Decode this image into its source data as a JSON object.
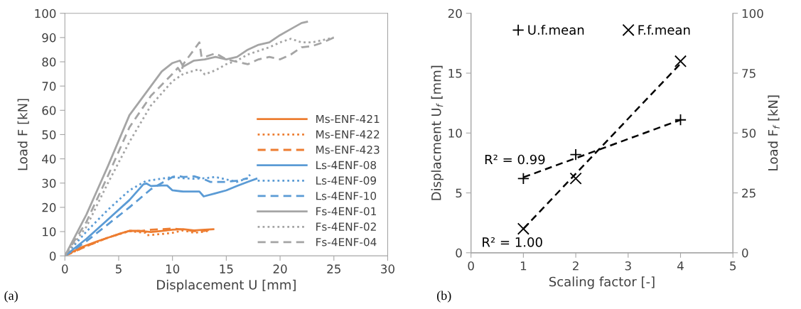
{
  "chart_data": [
    {
      "type": "line",
      "xlabel": "Displacement U [mm]",
      "ylabel": "Load F [kN]",
      "xlim": [
        0,
        30
      ],
      "ylim": [
        0,
        100
      ],
      "xticks": [
        0,
        5,
        10,
        15,
        20,
        25,
        30
      ],
      "yticks": [
        0,
        10,
        20,
        30,
        40,
        50,
        60,
        70,
        80,
        90,
        100
      ],
      "grid": false,
      "legend": "lower right",
      "marker": "none",
      "annotations": [
        "(a)"
      ],
      "series": [
        {
          "name": "Ms-ENF-421",
          "color": "#ed7d31",
          "line_style": "solid",
          "x": [
            0,
            1.5,
            3,
            5,
            6,
            7,
            8,
            9,
            10,
            11,
            12,
            13,
            13.8
          ],
          "values": [
            0,
            3.5,
            6,
            9,
            10.3,
            10.3,
            9.8,
            10.3,
            10.8,
            11,
            10.5,
            10.8,
            11
          ]
        },
        {
          "name": "Ms-ENF-422",
          "color": "#ed7d31",
          "line_style": "dotted",
          "x": [
            0,
            2,
            4,
            6,
            7.5,
            7.6,
            9,
            10,
            11,
            12,
            13,
            13.5
          ],
          "values": [
            0,
            4,
            7.5,
            10.2,
            9.5,
            8.5,
            9,
            9.5,
            10.5,
            9.5,
            10,
            10.5
          ]
        },
        {
          "name": "Ms-ENF-423",
          "color": "#ed7d31",
          "line_style": "dashed",
          "x": [
            0,
            2,
            4,
            6,
            7,
            8,
            9,
            10,
            11,
            12,
            13,
            13.5
          ],
          "values": [
            0,
            4,
            7.5,
            10.3,
            10.2,
            10.8,
            11,
            11.3,
            10.8,
            10.2,
            10.3,
            10.8
          ]
        },
        {
          "name": "Ls-4ENF-08",
          "color": "#5b9bd5",
          "line_style": "solid",
          "x": [
            0,
            2,
            4,
            6,
            7.3,
            7.6,
            8,
            9,
            9.5,
            10,
            11,
            12,
            12.5,
            12.9,
            14,
            15,
            16,
            17,
            17.8
          ],
          "values": [
            0,
            7,
            15,
            23,
            29.5,
            29.8,
            28.8,
            29,
            29,
            27,
            26.5,
            26.5,
            26.5,
            24.5,
            25.8,
            27,
            28.8,
            30.5,
            31.8
          ]
        },
        {
          "name": "Ls-4ENF-09",
          "color": "#5b9bd5",
          "line_style": "dotted",
          "x": [
            0,
            2,
            4,
            6,
            7.5,
            8.5,
            10,
            11,
            12,
            13,
            14,
            15,
            16,
            17,
            17.2
          ],
          "values": [
            0,
            10,
            19,
            27,
            30.8,
            31.5,
            32.5,
            32,
            31.8,
            32,
            32.5,
            31.5,
            30.5,
            32,
            33.5
          ]
        },
        {
          "name": "Ls-4ENF-10",
          "color": "#5b9bd5",
          "line_style": "dashed",
          "x": [
            0,
            2,
            4,
            6,
            8,
            9,
            10,
            10.5,
            11,
            12,
            13,
            13.5,
            15,
            16,
            17
          ],
          "values": [
            0,
            6,
            13,
            20,
            27.5,
            30,
            32.5,
            33,
            32.5,
            32.8,
            31.5,
            30.5,
            30.5,
            31,
            32
          ]
        },
        {
          "name": "Fs-4ENF-01",
          "color": "#a5a5a5",
          "line_style": "solid",
          "x": [
            0,
            2,
            4,
            6,
            8,
            9,
            10,
            10.7,
            11,
            12,
            13,
            14,
            15,
            16,
            17,
            18,
            19,
            20,
            21,
            22,
            22.5
          ],
          "values": [
            0,
            17,
            37,
            58,
            70,
            76,
            79.5,
            80.5,
            78,
            80.5,
            81,
            82,
            81,
            82,
            85,
            87,
            88,
            91,
            93.5,
            96,
            96.5
          ]
        },
        {
          "name": "Fs-4ENF-02",
          "color": "#a5a5a5",
          "line_style": "dotted",
          "x": [
            0,
            2,
            4,
            6,
            8,
            10,
            11,
            12.5,
            13,
            14,
            15,
            16,
            17,
            18,
            19,
            20,
            21,
            22,
            23,
            25
          ],
          "values": [
            0,
            12,
            30,
            47,
            62,
            72,
            75,
            77,
            74.8,
            76.5,
            79,
            80.5,
            83,
            84.5,
            86,
            88,
            89.5,
            88,
            88,
            90
          ]
        },
        {
          "name": "Fs-4ENF-04",
          "color": "#a5a5a5",
          "line_style": "dashed",
          "x": [
            0,
            2,
            4,
            6,
            8,
            10,
            10.5,
            10.8,
            11,
            12,
            12.5,
            12.7,
            13,
            14,
            15,
            16,
            17,
            18,
            19,
            20,
            21,
            22,
            23,
            24,
            25
          ],
          "values": [
            0,
            14,
            33,
            53,
            66,
            75,
            77.5,
            75.5,
            79,
            85,
            88,
            82,
            82,
            83.5,
            81,
            80,
            79,
            81,
            82,
            81,
            83,
            86,
            86.5,
            88,
            90
          ]
        }
      ]
    },
    {
      "type": "scatter",
      "xlabel": "Scaling factor [-]",
      "ylabel": "Displacment U$_{f}$ [mm]",
      "y2label": "Load F$_{f}$ [kN]",
      "xlim": [
        0,
        5
      ],
      "ylim": [
        0,
        20
      ],
      "y2lim": [
        0,
        100
      ],
      "xticks": [
        0,
        1,
        2,
        3,
        4,
        5
      ],
      "yticks": [
        0,
        5,
        10,
        15,
        20
      ],
      "y2ticks": [
        0,
        25,
        50,
        75,
        100
      ],
      "grid": false,
      "legend": "top",
      "annotations": [
        "R² = 0.99",
        "R² = 1.00",
        "(b)"
      ],
      "series": [
        {
          "name": "U.f.mean",
          "color": "#000000",
          "marker": "plus",
          "x": [
            1,
            2,
            4
          ],
          "values": [
            6.2,
            8.2,
            11.1
          ]
        },
        {
          "name": "F.f.mean",
          "color": "#000000",
          "marker": "cross",
          "axis": "y2",
          "x": [
            1,
            2,
            4
          ],
          "values": [
            10,
            31,
            80
          ]
        },
        {
          "type": "line",
          "color": "#000000",
          "line_style": "dashed",
          "x": [
            1,
            4
          ],
          "values": [
            6.3,
            11.1
          ]
        },
        {
          "type": "line",
          "color": "#000000",
          "line_style": "dashed",
          "axis": "y2",
          "x": [
            1,
            4
          ],
          "values": [
            10,
            79
          ]
        }
      ]
    }
  ]
}
